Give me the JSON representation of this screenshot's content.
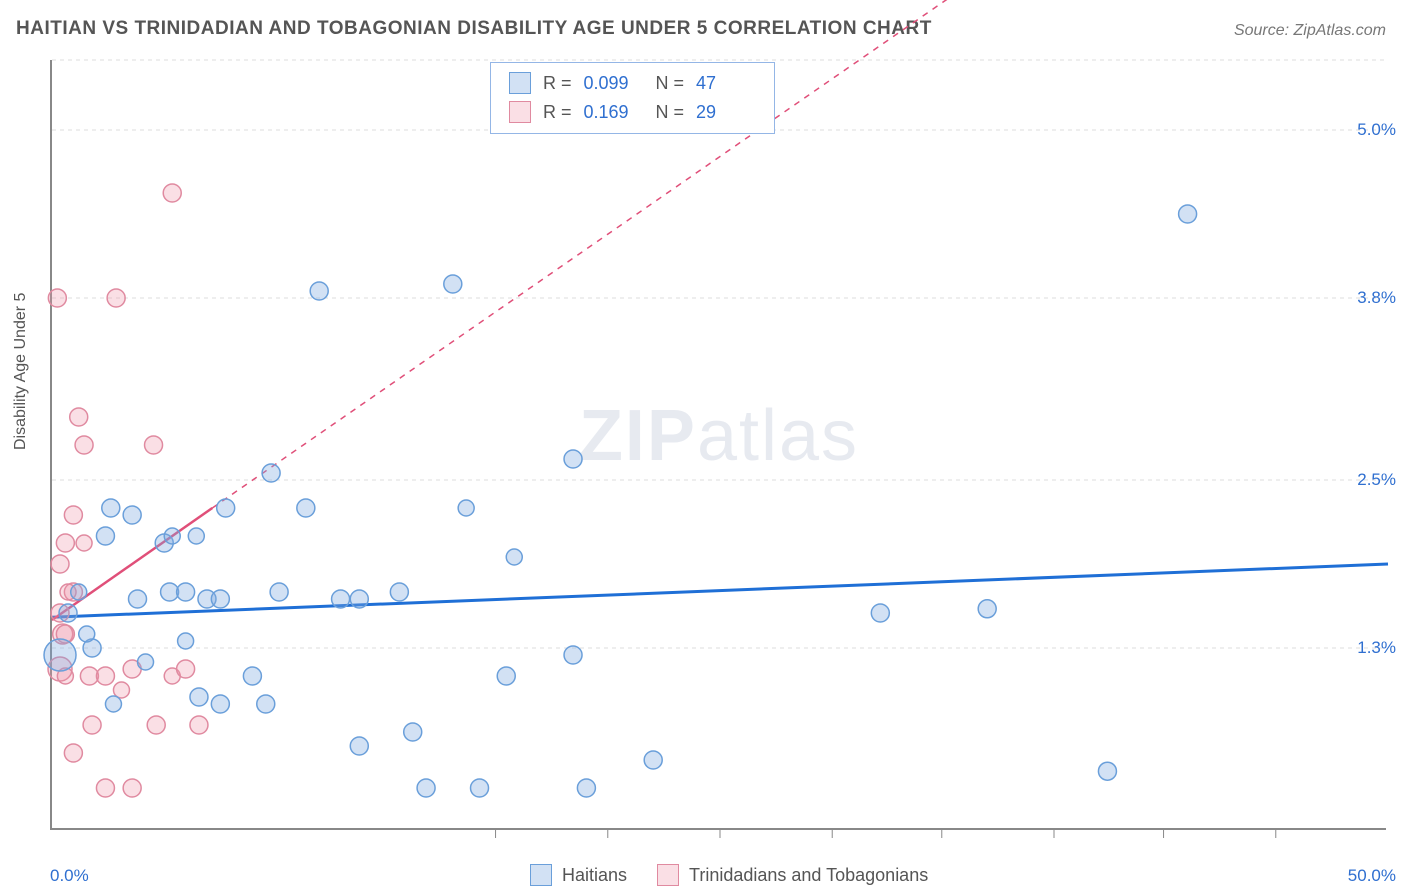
{
  "title": "HAITIAN VS TRINIDADIAN AND TOBAGONIAN DISABILITY AGE UNDER 5 CORRELATION CHART",
  "source": "Source: ZipAtlas.com",
  "ylabel": "Disability Age Under 5",
  "watermark_a": "ZIP",
  "watermark_b": "atlas",
  "chart": {
    "type": "scatter",
    "xlim": [
      0,
      50
    ],
    "ylim": [
      0,
      5.5
    ],
    "x_axis_min_label": "0.0%",
    "x_axis_max_label": "50.0%",
    "y_grid": [
      {
        "v": 1.3,
        "label": "1.3%"
      },
      {
        "v": 2.5,
        "label": "2.5%"
      },
      {
        "v": 3.8,
        "label": "3.8%"
      },
      {
        "v": 5.0,
        "label": "5.0%"
      }
    ],
    "x_ticks": [
      16.6,
      20.8,
      25.0,
      29.2,
      33.3,
      37.5,
      41.6,
      45.8
    ],
    "background_color": "#ffffff",
    "grid_color": "#dddddd",
    "axis_color": "#888888",
    "series": {
      "haitians": {
        "label": "Haitians",
        "fill": "rgba(126,170,224,0.35)",
        "stroke": "#6a9fda",
        "trend_color": "#1f6fd6",
        "trend_dash": "none",
        "trend_width": 3,
        "trend": {
          "x1": 0,
          "y1": 1.52,
          "x2": 50,
          "y2": 1.9
        },
        "R": "0.099",
        "N": "47",
        "points": [
          {
            "x": 0.3,
            "y": 1.25,
            "r": 16
          },
          {
            "x": 1.5,
            "y": 1.3,
            "r": 9
          },
          {
            "x": 0.6,
            "y": 1.55,
            "r": 9
          },
          {
            "x": 1.0,
            "y": 1.7,
            "r": 8
          },
          {
            "x": 1.3,
            "y": 1.4,
            "r": 8
          },
          {
            "x": 2.2,
            "y": 2.3,
            "r": 9
          },
          {
            "x": 2.0,
            "y": 2.1,
            "r": 9
          },
          {
            "x": 2.3,
            "y": 0.9,
            "r": 8
          },
          {
            "x": 3.0,
            "y": 2.25,
            "r": 9
          },
          {
            "x": 3.2,
            "y": 1.65,
            "r": 9
          },
          {
            "x": 3.5,
            "y": 1.2,
            "r": 8
          },
          {
            "x": 4.2,
            "y": 2.05,
            "r": 9
          },
          {
            "x": 4.4,
            "y": 1.7,
            "r": 9
          },
          {
            "x": 4.5,
            "y": 2.1,
            "r": 8
          },
          {
            "x": 5.0,
            "y": 1.7,
            "r": 9
          },
          {
            "x": 5.0,
            "y": 1.35,
            "r": 8
          },
          {
            "x": 5.4,
            "y": 2.1,
            "r": 8
          },
          {
            "x": 5.8,
            "y": 1.65,
            "r": 9
          },
          {
            "x": 5.5,
            "y": 0.95,
            "r": 9
          },
          {
            "x": 6.5,
            "y": 2.3,
            "r": 9
          },
          {
            "x": 6.3,
            "y": 1.65,
            "r": 9
          },
          {
            "x": 6.3,
            "y": 0.9,
            "r": 9
          },
          {
            "x": 7.5,
            "y": 1.1,
            "r": 9
          },
          {
            "x": 8.0,
            "y": 0.9,
            "r": 9
          },
          {
            "x": 8.2,
            "y": 2.55,
            "r": 9
          },
          {
            "x": 8.5,
            "y": 1.7,
            "r": 9
          },
          {
            "x": 9.5,
            "y": 2.3,
            "r": 9
          },
          {
            "x": 10.0,
            "y": 3.85,
            "r": 9
          },
          {
            "x": 10.8,
            "y": 1.65,
            "r": 9
          },
          {
            "x": 11.5,
            "y": 0.6,
            "r": 9
          },
          {
            "x": 11.5,
            "y": 1.65,
            "r": 9
          },
          {
            "x": 13.0,
            "y": 1.7,
            "r": 9
          },
          {
            "x": 13.5,
            "y": 0.7,
            "r": 9
          },
          {
            "x": 15.0,
            "y": 3.9,
            "r": 9
          },
          {
            "x": 15.5,
            "y": 2.3,
            "r": 8
          },
          {
            "x": 16.0,
            "y": 0.3,
            "r": 9
          },
          {
            "x": 17.0,
            "y": 1.1,
            "r": 9
          },
          {
            "x": 17.3,
            "y": 1.95,
            "r": 8
          },
          {
            "x": 19.5,
            "y": 2.65,
            "r": 9
          },
          {
            "x": 19.5,
            "y": 1.25,
            "r": 9
          },
          {
            "x": 20.0,
            "y": 0.3,
            "r": 9
          },
          {
            "x": 22.5,
            "y": 0.5,
            "r": 9
          },
          {
            "x": 31.0,
            "y": 1.55,
            "r": 9
          },
          {
            "x": 35.0,
            "y": 1.58,
            "r": 9
          },
          {
            "x": 39.5,
            "y": 0.42,
            "r": 9
          },
          {
            "x": 42.5,
            "y": 4.4,
            "r": 9
          },
          {
            "x": 14.0,
            "y": 0.3,
            "r": 9
          }
        ]
      },
      "trinidad": {
        "label": "Trinidadians and Tobagonians",
        "fill": "rgba(238,150,170,0.30)",
        "stroke": "#e08aa0",
        "trend_color": "#e04f79",
        "trend_dash_solid": {
          "x1": 0,
          "y1": 1.5,
          "x2": 6,
          "y2": 2.3
        },
        "trend_dash_dashed": {
          "x1": 6,
          "y1": 2.3,
          "x2": 34,
          "y2": 6.0
        },
        "R": "0.169",
        "N": "29",
        "points": [
          {
            "x": 0.2,
            "y": 3.8,
            "r": 9
          },
          {
            "x": 0.3,
            "y": 1.9,
            "r": 9
          },
          {
            "x": 0.3,
            "y": 1.55,
            "r": 9
          },
          {
            "x": 0.4,
            "y": 1.4,
            "r": 10
          },
          {
            "x": 0.3,
            "y": 1.15,
            "r": 12
          },
          {
            "x": 0.5,
            "y": 2.05,
            "r": 9
          },
          {
            "x": 0.8,
            "y": 2.25,
            "r": 9
          },
          {
            "x": 0.8,
            "y": 1.7,
            "r": 9
          },
          {
            "x": 0.8,
            "y": 0.55,
            "r": 9
          },
          {
            "x": 1.0,
            "y": 2.95,
            "r": 9
          },
          {
            "x": 1.2,
            "y": 2.75,
            "r": 9
          },
          {
            "x": 1.2,
            "y": 2.05,
            "r": 8
          },
          {
            "x": 1.4,
            "y": 1.1,
            "r": 9
          },
          {
            "x": 1.5,
            "y": 0.75,
            "r": 9
          },
          {
            "x": 2.0,
            "y": 1.1,
            "r": 9
          },
          {
            "x": 2.4,
            "y": 3.8,
            "r": 9
          },
          {
            "x": 2.6,
            "y": 1.0,
            "r": 8
          },
          {
            "x": 3.0,
            "y": 1.15,
            "r": 9
          },
          {
            "x": 3.8,
            "y": 2.75,
            "r": 9
          },
          {
            "x": 3.9,
            "y": 0.75,
            "r": 9
          },
          {
            "x": 4.5,
            "y": 4.55,
            "r": 9
          },
          {
            "x": 4.5,
            "y": 1.1,
            "r": 8
          },
          {
            "x": 5.0,
            "y": 1.15,
            "r": 9
          },
          {
            "x": 5.5,
            "y": 0.75,
            "r": 9
          },
          {
            "x": 0.5,
            "y": 1.1,
            "r": 8
          },
          {
            "x": 0.5,
            "y": 1.4,
            "r": 9
          },
          {
            "x": 0.6,
            "y": 1.7,
            "r": 8
          },
          {
            "x": 2.0,
            "y": 0.3,
            "r": 9
          },
          {
            "x": 3.0,
            "y": 0.3,
            "r": 9
          }
        ]
      }
    }
  },
  "stats_box": {
    "rows": [
      {
        "swatch_fill": "rgba(126,170,224,0.35)",
        "swatch_stroke": "#6a9fda",
        "r_label": "R =",
        "r_val": "0.099",
        "n_label": "N =",
        "n_val": "47"
      },
      {
        "swatch_fill": "rgba(238,150,170,0.30)",
        "swatch_stroke": "#e08aa0",
        "r_label": "R =",
        "r_val": "0.169",
        "n_label": "N =",
        "n_val": "29"
      }
    ]
  },
  "legend": {
    "items": [
      {
        "swatch_fill": "rgba(126,170,224,0.35)",
        "swatch_stroke": "#6a9fda",
        "label": "Haitians"
      },
      {
        "swatch_fill": "rgba(238,150,170,0.30)",
        "swatch_stroke": "#e08aa0",
        "label": "Trinidadians and Tobagonians"
      }
    ]
  }
}
